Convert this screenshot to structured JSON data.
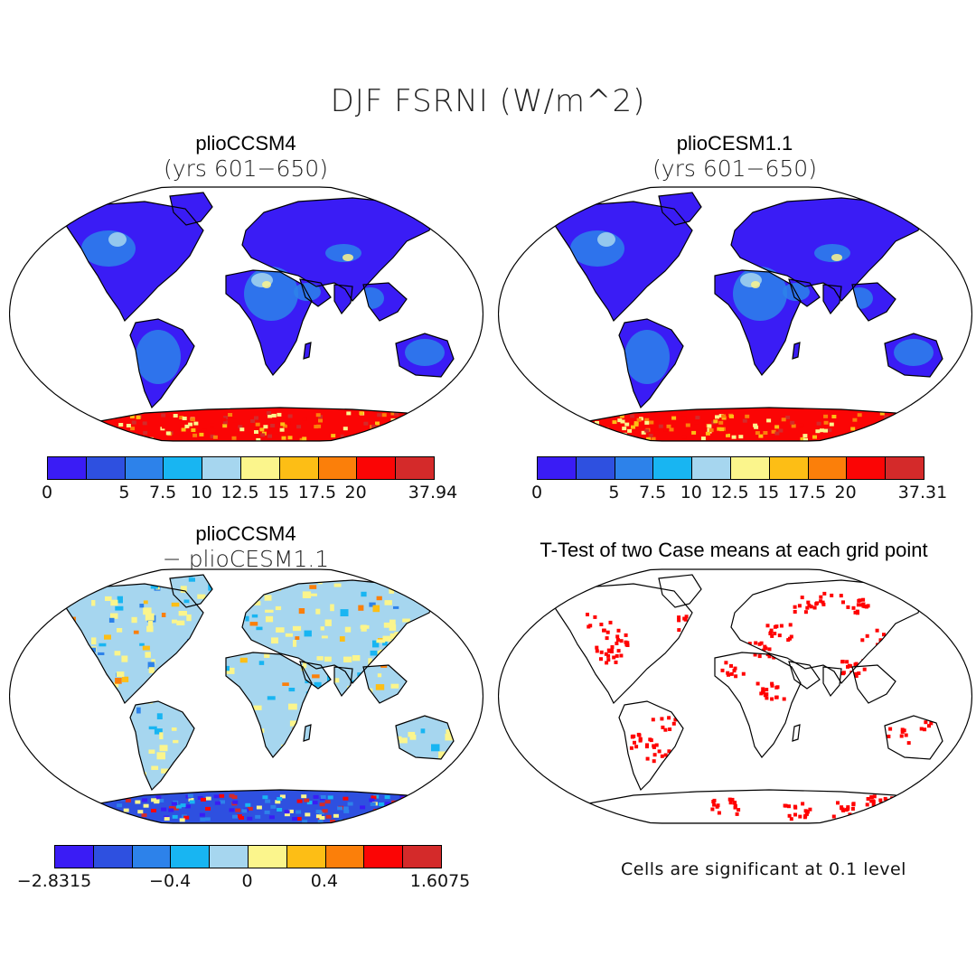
{
  "title": "DJF FSRNI (W/m^2)",
  "panels": [
    {
      "id": "p1",
      "title": "plioCCSM4",
      "subtitle": "(yrs 601−650)",
      "field": "abs"
    },
    {
      "id": "p2",
      "title": "plioCESM1.1",
      "subtitle": "(yrs 601−650)",
      "field": "abs"
    },
    {
      "id": "p3",
      "title": "plioCCSM4",
      "subtitle": "− plioCESM1.1",
      "field": "diff"
    },
    {
      "id": "p4",
      "title": "T-Test of two Case means at each grid point",
      "field": "sig"
    }
  ],
  "colorbars": [
    {
      "colors": [
        "#3a1cf5",
        "#2e50e0",
        "#2d82ea",
        "#18b5f2",
        "#a6d6ef",
        "#fbf58c",
        "#fdbe15",
        "#fb7f0a",
        "#fb0505",
        "#d42a2a"
      ],
      "ticks": [
        "0",
        "",
        "5",
        "7.5",
        "10",
        "12.5",
        "15",
        "17.5",
        "20",
        "",
        "37.94"
      ]
    },
    {
      "colors": [
        "#3a1cf5",
        "#2e50e0",
        "#2d82ea",
        "#18b5f2",
        "#a6d6ef",
        "#fbf58c",
        "#fdbe15",
        "#fb7f0a",
        "#fb0505",
        "#d42a2a"
      ],
      "ticks": [
        "0",
        "",
        "5",
        "7.5",
        "10",
        "12.5",
        "15",
        "17.5",
        "20",
        "",
        "37.31"
      ]
    },
    {
      "colors": [
        "#3a1cf5",
        "#2e50e0",
        "#2d82ea",
        "#18b5f2",
        "#a6d6ef",
        "#fbf58c",
        "#fdbe15",
        "#fb7f0a",
        "#fb0505",
        "#d42a2a"
      ],
      "ticks": [
        "−2.8315",
        "",
        "",
        "−0.4",
        "",
        "0",
        "",
        "0.4",
        "",
        "",
        "1.6075"
      ]
    }
  ],
  "significance_note": "Cells are significant at 0.1 level"
}
